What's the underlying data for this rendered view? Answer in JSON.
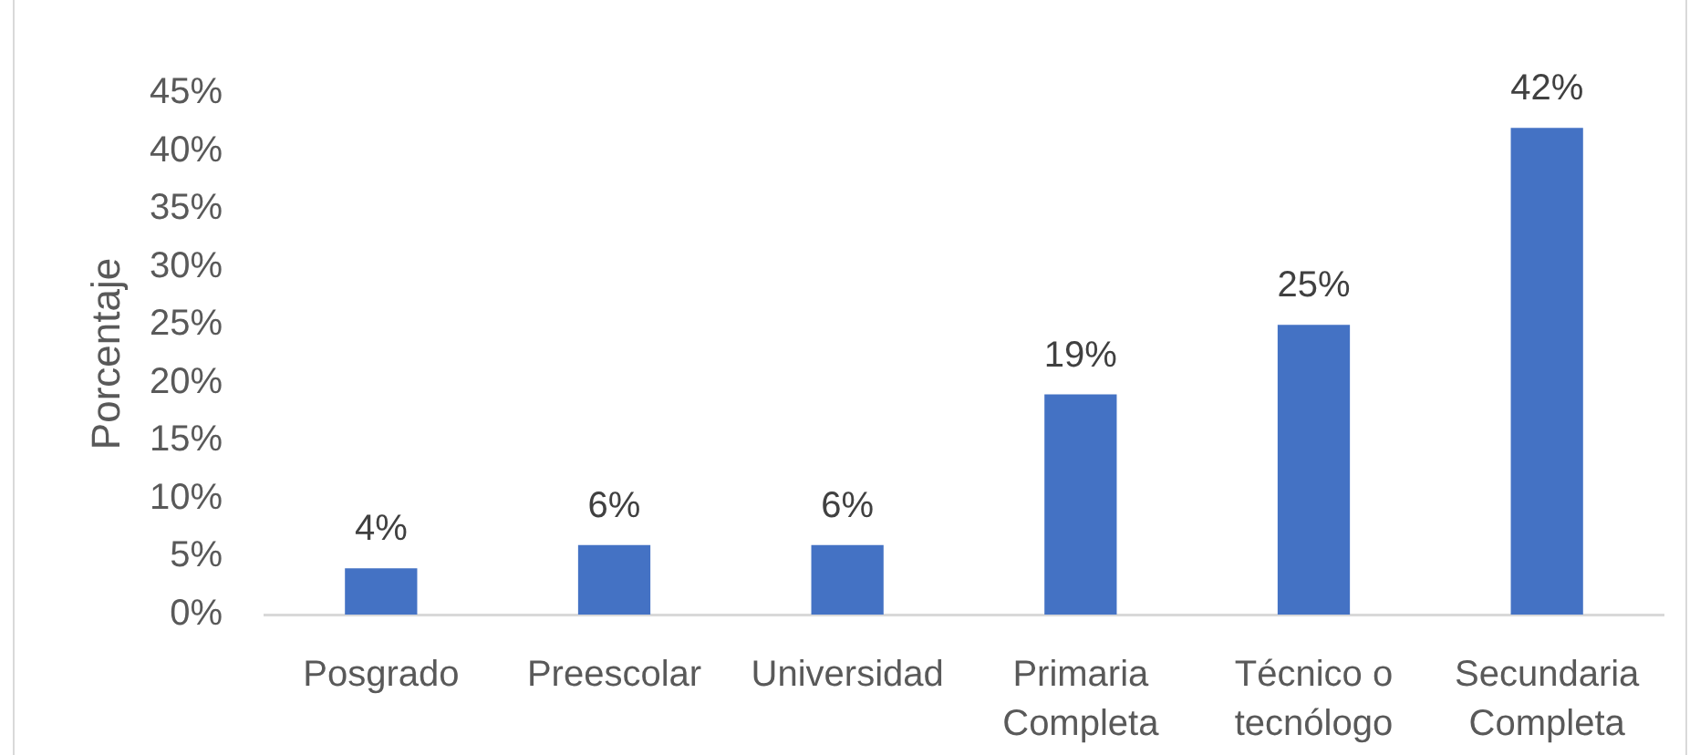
{
  "chart_data": {
    "type": "bar",
    "ylabel": "Porcentaje",
    "categories": [
      "Posgrado",
      "Preescolar",
      "Universidad",
      "Primaria Completa",
      "Técnico o tecnólogo",
      "Secundaria Completa"
    ],
    "values": [
      4,
      6,
      6,
      19,
      25,
      42
    ],
    "value_labels": [
      "4%",
      "6%",
      "6%",
      "19%",
      "25%",
      "42%"
    ],
    "color": "#4472c4",
    "ylim": [
      0,
      45
    ],
    "yticks": [
      {
        "value": 0,
        "label": "0%"
      },
      {
        "value": 5,
        "label": "5%"
      },
      {
        "value": 10,
        "label": "10%"
      },
      {
        "value": 15,
        "label": "15%"
      },
      {
        "value": 20,
        "label": "20%"
      },
      {
        "value": 25,
        "label": "25%"
      },
      {
        "value": 30,
        "label": "30%"
      },
      {
        "value": 35,
        "label": "35%"
      },
      {
        "value": 40,
        "label": "40%"
      },
      {
        "value": 45,
        "label": "45%"
      }
    ]
  }
}
